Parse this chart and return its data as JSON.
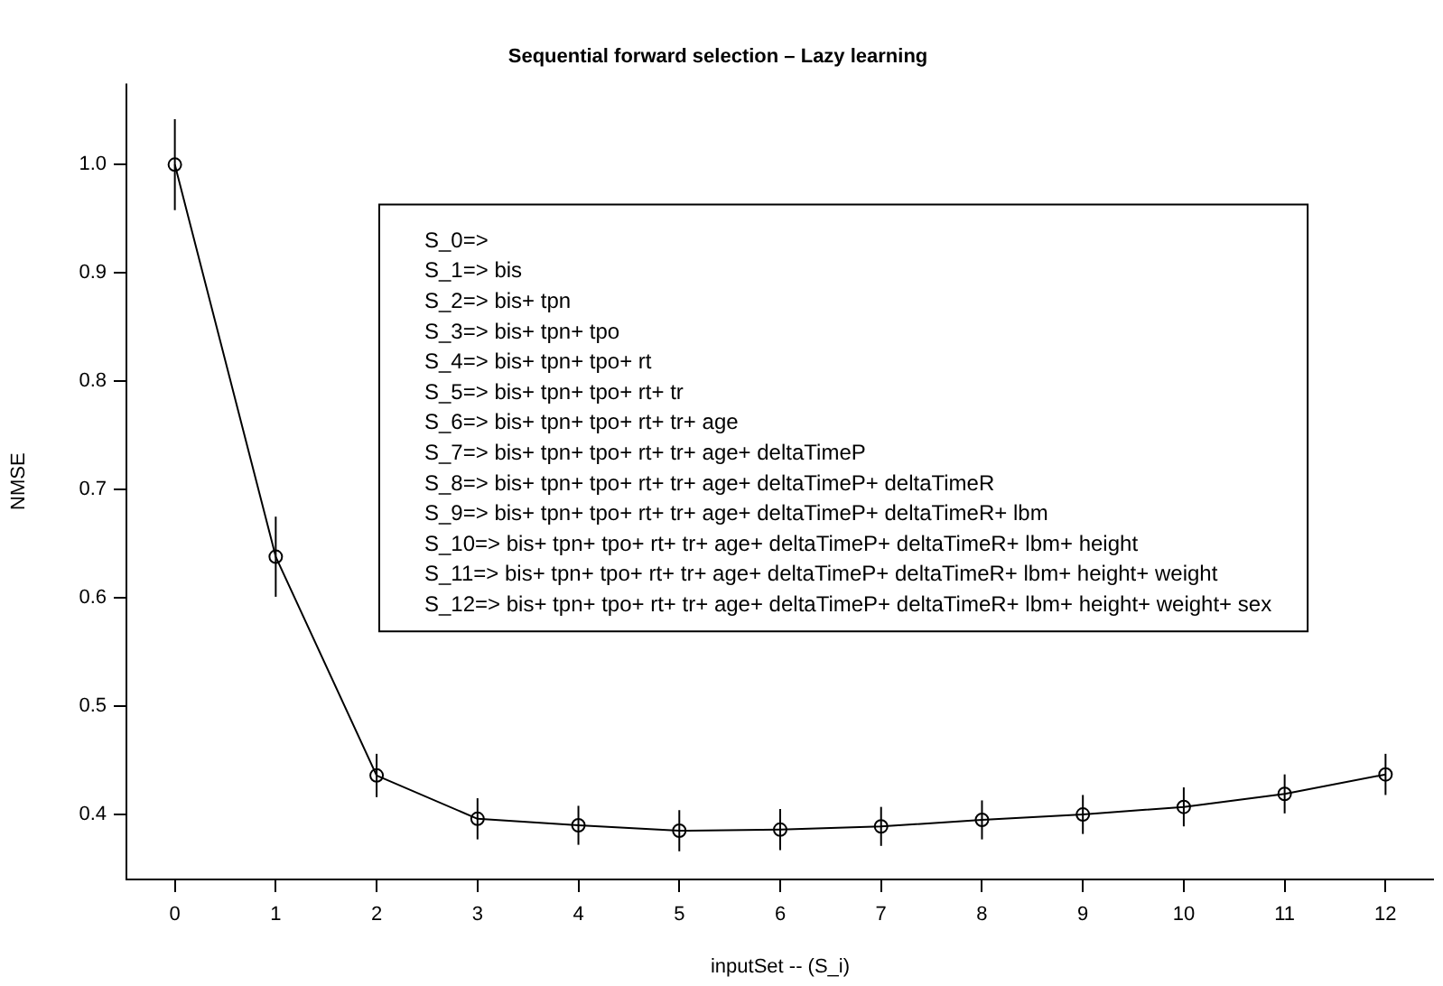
{
  "chart_data": {
    "type": "line",
    "title": "Sequential forward selection – Lazy learning",
    "xlabel": "inputSet -- (S_i)",
    "ylabel": "NMSE",
    "x": [
      0,
      1,
      2,
      3,
      4,
      5,
      6,
      7,
      8,
      9,
      10,
      11,
      12
    ],
    "values": [
      1.0,
      0.638,
      0.436,
      0.396,
      0.39,
      0.385,
      0.386,
      0.389,
      0.395,
      0.4,
      0.407,
      0.419,
      0.437
    ],
    "errors": [
      0.042,
      0.037,
      0.02,
      0.019,
      0.018,
      0.019,
      0.019,
      0.018,
      0.018,
      0.018,
      0.018,
      0.018,
      0.019
    ],
    "color": "#000000",
    "marker": "circle",
    "line_style": "solid",
    "grid": false,
    "legend": false,
    "xlim": [
      -0.48,
      12.48
    ],
    "xticks": [
      0,
      1,
      2,
      3,
      4,
      5,
      6,
      7,
      8,
      9,
      10,
      11,
      12
    ],
    "ylim": [
      0.34,
      1.075
    ],
    "yticks": [
      0.4,
      0.5,
      0.6,
      0.7,
      0.8,
      0.9,
      {
        "value": 1.0,
        "label": "1.0"
      }
    ],
    "annotations": [
      "S_0=>",
      "S_1=> bis",
      "S_2=> bis+ tpn",
      "S_3=> bis+ tpn+ tpo",
      "S_4=> bis+ tpn+ tpo+ rt",
      "S_5=> bis+ tpn+ tpo+ rt+ tr",
      "S_6=> bis+ tpn+ tpo+ rt+ tr+ age",
      "S_7=> bis+ tpn+ tpo+ rt+ tr+ age+ deltaTimeP",
      "S_8=> bis+ tpn+ tpo+ rt+ tr+ age+ deltaTimeP+ deltaTimeR",
      "S_9=> bis+ tpn+ tpo+ rt+ tr+ age+ deltaTimeP+ deltaTimeR+ lbm",
      "S_10=> bis+ tpn+ tpo+ rt+ tr+ age+ deltaTimeP+ deltaTimeR+ lbm+ height",
      "S_11=> bis+ tpn+ tpo+ rt+ tr+ age+ deltaTimeP+ deltaTimeR+ lbm+ height+ weight",
      "S_12=> bis+ tpn+ tpo+ rt+ tr+ age+ deltaTimeP+ deltaTimeR+ lbm+ height+ weight+ sex"
    ]
  }
}
